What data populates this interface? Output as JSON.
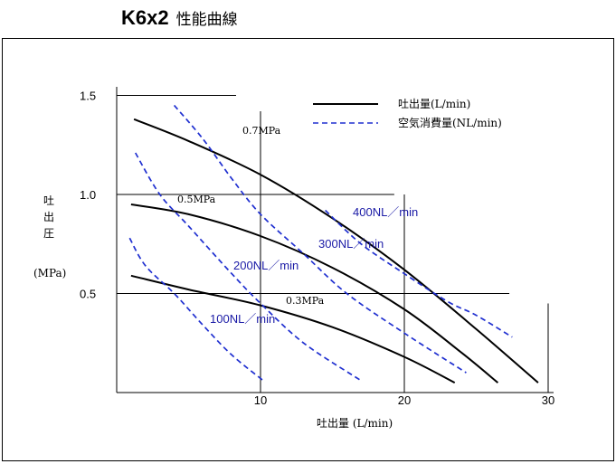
{
  "title": {
    "model": "K6x2",
    "subtitle": "性能曲線"
  },
  "legend": {
    "discharge": "吐出量(L/min)",
    "air": "空気消費量(NL/min)",
    "colors": {
      "discharge": "#000000",
      "air": "#1f2fd0"
    }
  },
  "axes": {
    "ylabel_jp": "吐出圧",
    "ylabel_unit": "(MPa)",
    "xlabel": "吐出量 (L/min)",
    "y_ticks": [
      "0.5",
      "1.0",
      "1.5"
    ],
    "x_ticks": [
      "10",
      "20",
      "30"
    ]
  },
  "chart_data": {
    "type": "line",
    "xlabel": "吐出量 (L/min)",
    "ylabel": "吐出圧 (MPa)",
    "xlim": [
      0,
      30
    ],
    "ylim": [
      0,
      1.5
    ],
    "grid": true,
    "legend_position": "top-right",
    "series": [
      {
        "name": "0.7MPa",
        "kind": "discharge",
        "x": [
          1.2,
          5,
          10,
          15,
          20,
          25,
          29.3
        ],
        "y": [
          1.38,
          1.27,
          1.1,
          0.88,
          0.62,
          0.32,
          0.05
        ]
      },
      {
        "name": "0.5MPa",
        "kind": "discharge",
        "x": [
          1.0,
          5,
          10,
          15,
          20,
          24,
          26.5
        ],
        "y": [
          0.95,
          0.9,
          0.79,
          0.63,
          0.42,
          0.2,
          0.05
        ]
      },
      {
        "name": "0.3MPa",
        "kind": "discharge",
        "x": [
          1.0,
          5,
          10,
          15,
          20,
          23.5
        ],
        "y": [
          0.59,
          0.52,
          0.44,
          0.33,
          0.18,
          0.05
        ]
      },
      {
        "name": "400NL/min",
        "kind": "air",
        "x": [
          14.5,
          17,
          20,
          23,
          25,
          27.5
        ],
        "y": [
          0.92,
          0.75,
          0.6,
          0.46,
          0.39,
          0.28
        ]
      },
      {
        "name": "300NL/min",
        "kind": "air",
        "x": [
          4.0,
          6,
          8,
          10,
          13,
          16,
          20,
          24.3
        ],
        "y": [
          1.45,
          1.28,
          1.08,
          0.9,
          0.7,
          0.5,
          0.3,
          0.1
        ]
      },
      {
        "name": "200NL/min",
        "kind": "air",
        "x": [
          1.3,
          3,
          5,
          8,
          10,
          13,
          17
        ],
        "y": [
          1.21,
          1.0,
          0.84,
          0.6,
          0.45,
          0.25,
          0.06
        ]
      },
      {
        "name": "100NL/min",
        "kind": "air",
        "x": [
          0.9,
          2,
          4,
          6,
          8,
          10.2
        ],
        "y": [
          0.78,
          0.64,
          0.5,
          0.34,
          0.19,
          0.06
        ]
      }
    ],
    "curve_labels": {
      "discharge": [
        "0.7MPa",
        "0.5MPa",
        "0.3MPa"
      ],
      "air": [
        "400NL／min",
        "300NL／min",
        "200NL／min",
        "100NL／min"
      ]
    }
  }
}
